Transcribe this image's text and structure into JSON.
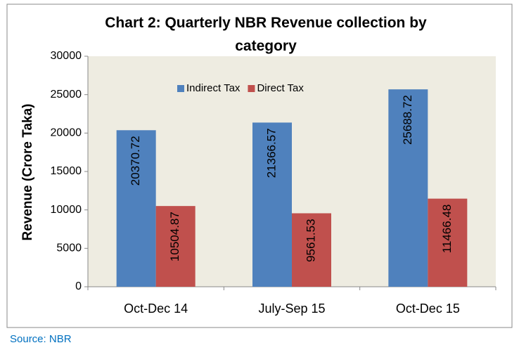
{
  "chart_data": {
    "type": "bar",
    "title": "Chart 2: Quarterly NBR Revenue collection by category",
    "y_label": "Revenue  (Crore Taka)",
    "categories": [
      "Oct-Dec 14",
      "July-Sep 15",
      "Oct-Dec 15"
    ],
    "series": [
      {
        "name": "Indirect Tax",
        "color": "#4f81bd",
        "values": [
          20370.72,
          21366.57,
          25688.72
        ]
      },
      {
        "name": "Direct Tax",
        "color": "#c0504d",
        "values": [
          10504.87,
          9561.53,
          11466.48
        ]
      }
    ],
    "ylim": [
      0,
      30000
    ],
    "yticks": [
      0,
      5000,
      10000,
      15000,
      20000,
      25000,
      30000
    ],
    "legend": "top",
    "source": "Source: NBR"
  }
}
